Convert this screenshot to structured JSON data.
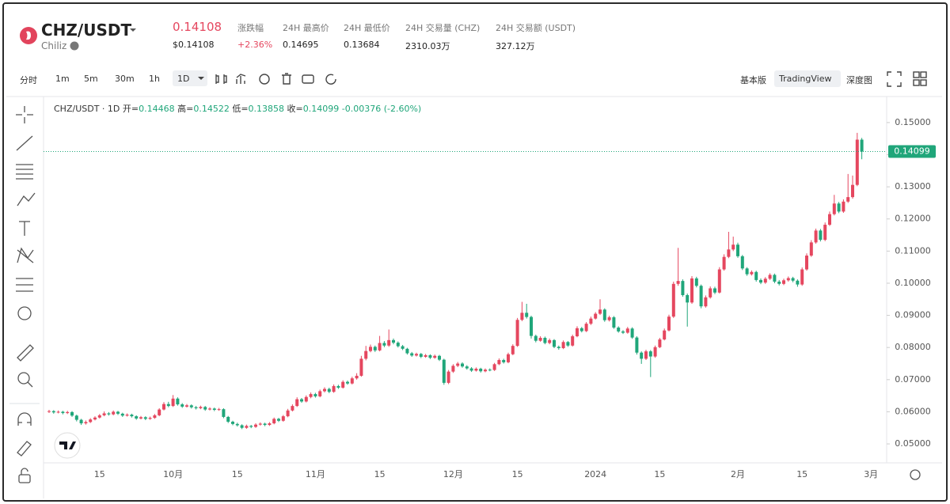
{
  "header": {
    "pair": "CHZ/USDT",
    "name": "Chiliz",
    "price": "0.14108",
    "price_usd": "$0.14108",
    "stats": [
      {
        "label": "涨跌幅",
        "value": "+2.36%"
      },
      {
        "label": "24H 最高价",
        "value": "0.14695"
      },
      {
        "label": "24H 最低价",
        "value": "0.13684"
      },
      {
        "label": "24H 交易量 (CHZ)",
        "value": "2310.03万"
      },
      {
        "label": "24H 交易额 (USDT)",
        "value": "327.12万"
      }
    ]
  },
  "toolbar": {
    "intervals": [
      "分时",
      "1m",
      "5m",
      "30m",
      "1h",
      "1D"
    ],
    "views": [
      "基本版",
      "TradingView",
      "深度图"
    ]
  },
  "chart_data": {
    "type": "candlestick",
    "title": "CHZ/USDT · 1D",
    "ohlc_labels": [
      "开=",
      "高=",
      "低=",
      "收="
    ],
    "change": "-0.00376 (-2.60%)",
    "up_color": "#e5475f",
    "down_color": "#20a67a",
    "grid": false,
    "ylim": [
      0.0441,
      0.1581
    ],
    "yticks": [
      {
        "value": 0.05,
        "label": "0.05000"
      },
      {
        "value": 0.06,
        "label": "0.06000"
      },
      {
        "value": 0.07,
        "label": "0.07000"
      },
      {
        "value": 0.08,
        "label": "0.08000"
      },
      {
        "value": 0.09,
        "label": "0.09000"
      },
      {
        "value": 0.1,
        "label": "0.10000"
      },
      {
        "value": 0.11,
        "label": "0.11000"
      },
      {
        "value": 0.12,
        "label": "0.12000"
      },
      {
        "value": 0.13,
        "label": "0.13000"
      },
      {
        "value": 0.14,
        "label": "0.14000"
      },
      {
        "value": 0.15,
        "label": "0.15000"
      }
    ],
    "categories": [
      null,
      null,
      null,
      null,
      null,
      null,
      null,
      null,
      null,
      null,
      null,
      "15",
      null,
      null,
      null,
      null,
      null,
      null,
      null,
      null,
      null,
      null,
      null,
      null,
      null,
      null,
      null,
      "10月",
      null,
      null,
      null,
      null,
      null,
      null,
      null,
      null,
      null,
      null,
      null,
      null,
      null,
      "15",
      null,
      null,
      null,
      null,
      null,
      null,
      null,
      null,
      null,
      null,
      null,
      null,
      null,
      null,
      null,
      null,
      "11月",
      null,
      null,
      null,
      null,
      null,
      null,
      null,
      null,
      null,
      null,
      null,
      null,
      null,
      "15",
      null,
      null,
      null,
      null,
      null,
      null,
      null,
      null,
      null,
      null,
      null,
      null,
      null,
      null,
      null,
      "12月",
      null,
      null,
      null,
      null,
      null,
      null,
      null,
      null,
      null,
      null,
      null,
      null,
      null,
      "15",
      null,
      null,
      null,
      null,
      null,
      null,
      null,
      null,
      null,
      null,
      null,
      null,
      null,
      null,
      null,
      null,
      "2024",
      null,
      null,
      null,
      null,
      null,
      null,
      null,
      null,
      null,
      null,
      null,
      null,
      null,
      "15",
      null,
      null,
      null,
      null,
      null,
      null,
      null,
      null,
      null,
      null,
      null,
      null,
      null,
      null,
      null,
      null,
      "2月",
      null,
      null,
      null,
      null,
      null,
      null,
      null,
      null,
      null,
      null,
      null,
      null,
      null,
      "15",
      null,
      null,
      null,
      null,
      null,
      null,
      null,
      null,
      null,
      null,
      null,
      null,
      null,
      null,
      "3月"
    ],
    "open": [
      0.06,
      0.0602,
      0.0598,
      0.06,
      0.0596,
      0.0599,
      0.0588,
      0.0575,
      0.0564,
      0.0568,
      0.0576,
      0.0582,
      0.0589,
      0.0595,
      0.0592,
      0.06,
      0.0594,
      0.0588,
      0.0591,
      0.0586,
      0.0579,
      0.0583,
      0.0578,
      0.0581,
      0.0589,
      0.0607,
      0.0624,
      0.0618,
      0.0641,
      0.0623,
      0.0616,
      0.062,
      0.0614,
      0.0611,
      0.0615,
      0.0607,
      0.061,
      0.0606,
      0.0608,
      0.0584,
      0.0569,
      0.0562,
      0.0558,
      0.055,
      0.0556,
      0.0553,
      0.056,
      0.0563,
      0.0559,
      0.0564,
      0.0578,
      0.0572,
      0.0586,
      0.0604,
      0.0618,
      0.0639,
      0.0632,
      0.0646,
      0.0655,
      0.0648,
      0.0664,
      0.0671,
      0.0662,
      0.068,
      0.0675,
      0.0693,
      0.0688,
      0.0704,
      0.0712,
      0.0765,
      0.0789,
      0.0802,
      0.0791,
      0.0814,
      0.0806,
      0.0823,
      0.0815,
      0.0804,
      0.0796,
      0.0782,
      0.0775,
      0.078,
      0.0771,
      0.0776,
      0.0768,
      0.0774,
      0.0762,
      0.069,
      0.0725,
      0.0743,
      0.075,
      0.0741,
      0.0735,
      0.0728,
      0.0734,
      0.0726,
      0.0731,
      0.073,
      0.0748,
      0.0761,
      0.0754,
      0.0779,
      0.0805,
      0.0886,
      0.0908,
      0.0895,
      0.0836,
      0.0821,
      0.083,
      0.0814,
      0.0823,
      0.0802,
      0.0798,
      0.0817,
      0.0806,
      0.0835,
      0.086,
      0.0851,
      0.0874,
      0.089,
      0.0905,
      0.0918,
      0.0885,
      0.0894,
      0.0862,
      0.085,
      0.0846,
      0.0859,
      0.0831,
      0.0784,
      0.0765,
      0.0788,
      0.0772,
      0.0801,
      0.0825,
      0.0853,
      0.0896,
      0.0998,
      0.1007,
      0.0963,
      0.094,
      0.1015,
      0.0992,
      0.0928,
      0.0956,
      0.0984,
      0.0971,
      0.1043,
      0.1082,
      0.1105,
      0.112,
      0.1084,
      0.1046,
      0.1028,
      0.1035,
      0.101,
      0.1002,
      0.1014,
      0.1026,
      0.1005,
      0.0998,
      0.1009,
      0.1016,
      0.1008,
      0.0996,
      0.1043,
      0.1086,
      0.1127,
      0.1164,
      0.1135,
      0.1182,
      0.1215,
      0.1248,
      0.1223,
      0.1254,
      0.1268,
      0.1306,
      0.14468,
      null,
      null
    ],
    "high": [
      0.0606,
      0.0605,
      0.0604,
      0.0603,
      0.0603,
      0.0602,
      0.0591,
      0.0578,
      0.0573,
      0.058,
      0.0586,
      0.0593,
      0.0601,
      0.0599,
      0.0604,
      0.0603,
      0.0597,
      0.0595,
      0.0594,
      0.0589,
      0.0587,
      0.0586,
      0.0585,
      0.0593,
      0.0611,
      0.063,
      0.0631,
      0.0652,
      0.0645,
      0.0627,
      0.0624,
      0.0623,
      0.0618,
      0.0619,
      0.0618,
      0.0614,
      0.0613,
      0.0612,
      0.0611,
      0.0587,
      0.0572,
      0.0566,
      0.0561,
      0.056,
      0.0559,
      0.0564,
      0.0567,
      0.0566,
      0.0568,
      0.0582,
      0.0581,
      0.059,
      0.0609,
      0.0623,
      0.0645,
      0.0643,
      0.0651,
      0.066,
      0.0659,
      0.0669,
      0.0676,
      0.0675,
      0.0685,
      0.0684,
      0.0698,
      0.0697,
      0.0709,
      0.072,
      0.0774,
      0.0805,
      0.0809,
      0.0806,
      0.0836,
      0.082,
      0.0856,
      0.0828,
      0.0819,
      0.0808,
      0.0799,
      0.0786,
      0.0784,
      0.0783,
      0.078,
      0.0779,
      0.0778,
      0.0777,
      0.0765,
      0.073,
      0.0748,
      0.0755,
      0.0754,
      0.0745,
      0.0739,
      0.0738,
      0.0737,
      0.0735,
      0.0735,
      0.0752,
      0.0766,
      0.0765,
      0.0784,
      0.081,
      0.0892,
      0.0942,
      0.0936,
      0.0899,
      0.084,
      0.0835,
      0.0834,
      0.0828,
      0.0826,
      0.0806,
      0.0822,
      0.082,
      0.084,
      0.0866,
      0.0864,
      0.0879,
      0.0896,
      0.091,
      0.095,
      0.0922,
      0.0899,
      0.0898,
      0.0866,
      0.0854,
      0.0864,
      0.0863,
      0.0835,
      0.0788,
      0.0793,
      0.0792,
      0.0806,
      0.083,
      0.0859,
      0.0902,
      0.1005,
      0.111,
      0.1012,
      0.0968,
      0.1022,
      0.102,
      0.0996,
      0.0962,
      0.099,
      0.0989,
      0.105,
      0.109,
      0.116,
      0.1145,
      0.1126,
      0.1088,
      0.105,
      0.104,
      0.1039,
      0.1015,
      0.1019,
      0.1031,
      0.103,
      0.101,
      0.1014,
      0.1021,
      0.102,
      0.1012,
      0.1049,
      0.1093,
      0.1134,
      0.117,
      0.1169,
      0.1189,
      0.1223,
      0.1275,
      0.1253,
      0.1261,
      0.134,
      0.1335,
      0.1468,
      0.14522,
      null,
      null
    ],
    "low": [
      0.0596,
      0.0594,
      0.0595,
      0.0592,
      0.0593,
      0.0584,
      0.057,
      0.0559,
      0.056,
      0.0565,
      0.0573,
      0.0579,
      0.0586,
      0.0588,
      0.0589,
      0.059,
      0.0584,
      0.0585,
      0.0582,
      0.0575,
      0.0576,
      0.0574,
      0.0575,
      0.0578,
      0.0586,
      0.0604,
      0.0614,
      0.0615,
      0.0619,
      0.0612,
      0.0613,
      0.061,
      0.0607,
      0.0608,
      0.0603,
      0.0604,
      0.0602,
      0.0603,
      0.058,
      0.0565,
      0.0558,
      0.0554,
      0.0546,
      0.0547,
      0.0549,
      0.055,
      0.0557,
      0.0555,
      0.0556,
      0.0561,
      0.0568,
      0.0569,
      0.0583,
      0.0601,
      0.0615,
      0.0628,
      0.0629,
      0.0642,
      0.0644,
      0.0645,
      0.066,
      0.0658,
      0.0659,
      0.0671,
      0.0672,
      0.0684,
      0.0685,
      0.07,
      0.0709,
      0.076,
      0.0785,
      0.0786,
      0.0788,
      0.0801,
      0.0802,
      0.081,
      0.08,
      0.0792,
      0.0778,
      0.0771,
      0.0772,
      0.0767,
      0.0768,
      0.0764,
      0.0765,
      0.0758,
      0.0684,
      0.0686,
      0.0721,
      0.0739,
      0.0737,
      0.0731,
      0.0724,
      0.0725,
      0.0722,
      0.0723,
      0.0726,
      0.0727,
      0.0745,
      0.075,
      0.0751,
      0.0776,
      0.0802,
      0.0882,
      0.089,
      0.0828,
      0.0816,
      0.0818,
      0.081,
      0.081,
      0.0798,
      0.0793,
      0.0795,
      0.0802,
      0.0803,
      0.0832,
      0.0847,
      0.0848,
      0.087,
      0.0887,
      0.0901,
      0.088,
      0.0881,
      0.0858,
      0.0846,
      0.0842,
      0.0843,
      0.0827,
      0.0778,
      0.0749,
      0.0761,
      0.0708,
      0.0768,
      0.0798,
      0.0822,
      0.085,
      0.0892,
      0.0992,
      0.0958,
      0.0865,
      0.0936,
      0.0987,
      0.0922,
      0.0924,
      0.0952,
      0.0966,
      0.0968,
      0.1039,
      0.1078,
      0.11,
      0.1079,
      0.1041,
      0.1023,
      0.1024,
      0.1005,
      0.0997,
      0.0998,
      0.101,
      0.1,
      0.0993,
      0.0994,
      0.1005,
      0.1003,
      0.0989,
      0.0992,
      0.1039,
      0.1082,
      0.1123,
      0.113,
      0.1131,
      0.1178,
      0.1211,
      0.1218,
      0.1219,
      0.125,
      0.1263,
      0.1302,
      0.13858,
      null,
      null
    ],
    "close": [
      0.0602,
      0.0598,
      0.06,
      0.0596,
      0.0599,
      0.0588,
      0.0575,
      0.0564,
      0.0568,
      0.0576,
      0.0582,
      0.0589,
      0.0595,
      0.0592,
      0.06,
      0.0594,
      0.0588,
      0.0591,
      0.0586,
      0.0579,
      0.0583,
      0.0578,
      0.0581,
      0.0589,
      0.0607,
      0.0624,
      0.0618,
      0.0641,
      0.0623,
      0.0616,
      0.062,
      0.0614,
      0.0611,
      0.0615,
      0.0607,
      0.061,
      0.0606,
      0.0608,
      0.0584,
      0.0569,
      0.0562,
      0.0558,
      0.055,
      0.0556,
      0.0553,
      0.056,
      0.0563,
      0.0559,
      0.0564,
      0.0578,
      0.0572,
      0.0586,
      0.0604,
      0.0618,
      0.0639,
      0.0632,
      0.0646,
      0.0655,
      0.0648,
      0.0664,
      0.0671,
      0.0662,
      0.068,
      0.0675,
      0.0693,
      0.0688,
      0.0704,
      0.0712,
      0.0765,
      0.0789,
      0.0802,
      0.0791,
      0.0814,
      0.0806,
      0.0823,
      0.0815,
      0.0804,
      0.0796,
      0.0782,
      0.0775,
      0.078,
      0.0771,
      0.0776,
      0.0768,
      0.0774,
      0.0762,
      0.069,
      0.0725,
      0.0743,
      0.075,
      0.0741,
      0.0735,
      0.0728,
      0.0734,
      0.0726,
      0.0731,
      0.073,
      0.0748,
      0.0761,
      0.0754,
      0.0779,
      0.0805,
      0.0886,
      0.0908,
      0.0895,
      0.0836,
      0.0821,
      0.083,
      0.0814,
      0.0823,
      0.0802,
      0.0798,
      0.0817,
      0.0806,
      0.0835,
      0.086,
      0.0851,
      0.0874,
      0.089,
      0.0905,
      0.0918,
      0.0885,
      0.0894,
      0.0862,
      0.085,
      0.0846,
      0.0859,
      0.0831,
      0.0784,
      0.0765,
      0.0788,
      0.0772,
      0.0801,
      0.0825,
      0.0853,
      0.0896,
      0.0998,
      0.1007,
      0.0963,
      0.094,
      0.1015,
      0.0992,
      0.0928,
      0.0956,
      0.0984,
      0.0971,
      0.1043,
      0.1082,
      0.1105,
      0.112,
      0.1084,
      0.1046,
      0.1028,
      0.1035,
      0.101,
      0.1002,
      0.1014,
      0.1026,
      0.1005,
      0.0998,
      0.1009,
      0.1016,
      0.1008,
      0.0996,
      0.1043,
      0.1086,
      0.1127,
      0.1164,
      0.1135,
      0.1182,
      0.1215,
      0.1248,
      0.1223,
      0.1254,
      0.1268,
      0.1306,
      0.14468,
      0.14099,
      null,
      null
    ]
  }
}
